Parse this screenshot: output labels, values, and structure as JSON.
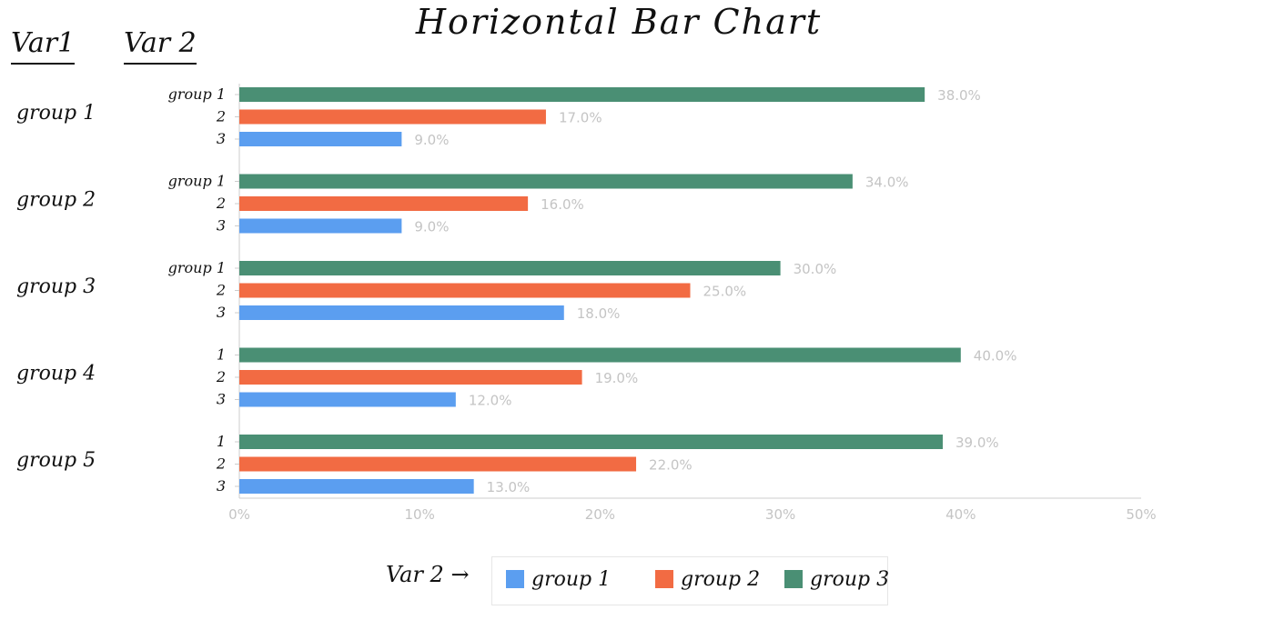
{
  "chart_data": {
    "type": "bar",
    "orientation": "horizontal",
    "title": "Horizontal Bar Chart",
    "headers": {
      "var1": "Var1",
      "var2": "Var 2"
    },
    "groups": [
      "group 1",
      "group 2",
      "group 3",
      "group 4",
      "group 5"
    ],
    "bar_labels": [
      [
        "group 1",
        "2",
        "3"
      ],
      [
        "group 1",
        "2",
        "3"
      ],
      [
        "group 1",
        "2",
        "3"
      ],
      [
        "1",
        "2",
        "3"
      ],
      [
        "1",
        "2",
        "3"
      ]
    ],
    "series": [
      {
        "name": "group 3",
        "color": "#4a8f74",
        "values": [
          38.0,
          34.0,
          30.0,
          40.0,
          39.0
        ]
      },
      {
        "name": "group 2",
        "color": "#f26b43",
        "values": [
          17.0,
          16.0,
          25.0,
          19.0,
          22.0
        ]
      },
      {
        "name": "group 1",
        "color": "#5b9ef0",
        "values": [
          9.0,
          9.0,
          18.0,
          12.0,
          13.0
        ]
      }
    ],
    "value_labels": [
      [
        "38.0%",
        "17.0%",
        "9.0%"
      ],
      [
        "34.0%",
        "16.0%",
        "9.0%"
      ],
      [
        "30.0%",
        "25.0%",
        "18.0%"
      ],
      [
        "40.0%",
        "19.0%",
        "12.0%"
      ],
      [
        "39.0%",
        "22.0%",
        "13.0%"
      ]
    ],
    "xlim": [
      0,
      50
    ],
    "xticks": [
      "0%",
      "10%",
      "20%",
      "30%",
      "40%",
      "50%"
    ],
    "grid": false,
    "legend": {
      "prefix": "Var 2 →",
      "placement": "bottom-center",
      "items": [
        {
          "label": "group 1",
          "color": "#5b9ef0"
        },
        {
          "label": "group 2",
          "color": "#f26b43"
        },
        {
          "label": "group 3",
          "color": "#4a8f74"
        }
      ]
    }
  }
}
